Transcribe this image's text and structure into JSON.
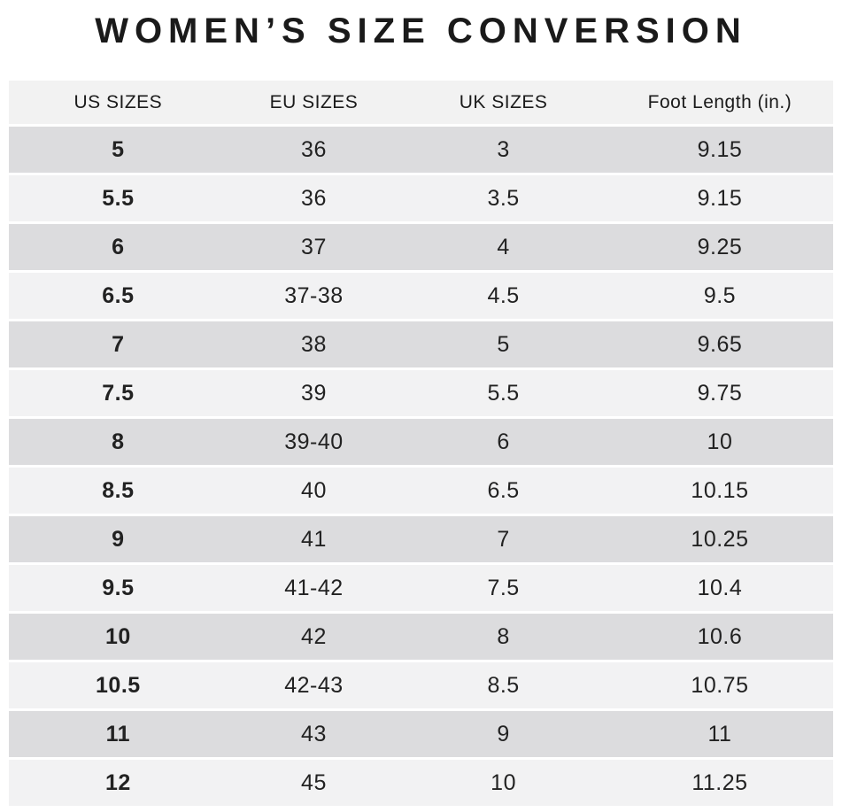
{
  "title": "WOMEN’S SIZE CONVERSION",
  "colors": {
    "row_dark": "#dcdcde",
    "row_light": "#f2f2f3",
    "header_bg": "#f2f2f2",
    "text": "#222222",
    "title_text": "#1a1a1a",
    "page_bg": "#ffffff"
  },
  "table": {
    "columns": [
      "US SIZES",
      "EU SIZES",
      "UK SIZES",
      "Foot Length (in.)"
    ],
    "rows": [
      [
        "5",
        "36",
        "3",
        "9.15"
      ],
      [
        "5.5",
        "36",
        "3.5",
        "9.15"
      ],
      [
        "6",
        "37",
        "4",
        "9.25"
      ],
      [
        "6.5",
        "37-38",
        "4.5",
        "9.5"
      ],
      [
        "7",
        "38",
        "5",
        "9.65"
      ],
      [
        "7.5",
        "39",
        "5.5",
        "9.75"
      ],
      [
        "8",
        "39-40",
        "6",
        "10"
      ],
      [
        "8.5",
        "40",
        "6.5",
        "10.15"
      ],
      [
        "9",
        "41",
        "7",
        "10.25"
      ],
      [
        "9.5",
        "41-42",
        "7.5",
        "10.4"
      ],
      [
        "10",
        "42",
        "8",
        "10.6"
      ],
      [
        "10.5",
        "42-43",
        "8.5",
        "10.75"
      ],
      [
        "11",
        "43",
        "9",
        "11"
      ],
      [
        "12",
        "45",
        "10",
        "11.25"
      ]
    ]
  },
  "chart_data": {
    "type": "table",
    "title": "WOMEN’S SIZE CONVERSION",
    "columns": [
      "US SIZES",
      "EU SIZES",
      "UK SIZES",
      "Foot Length (in.)"
    ],
    "rows": [
      [
        "5",
        "36",
        "3",
        "9.15"
      ],
      [
        "5.5",
        "36",
        "3.5",
        "9.15"
      ],
      [
        "6",
        "37",
        "4",
        "9.25"
      ],
      [
        "6.5",
        "37-38",
        "4.5",
        "9.5"
      ],
      [
        "7",
        "38",
        "5",
        "9.65"
      ],
      [
        "7.5",
        "39",
        "5.5",
        "9.75"
      ],
      [
        "8",
        "39-40",
        "6",
        "10"
      ],
      [
        "8.5",
        "40",
        "6.5",
        "10.15"
      ],
      [
        "9",
        "41",
        "7",
        "10.25"
      ],
      [
        "9.5",
        "41-42",
        "7.5",
        "10.4"
      ],
      [
        "10",
        "42",
        "8",
        "10.6"
      ],
      [
        "10.5",
        "42-43",
        "8.5",
        "10.75"
      ],
      [
        "11",
        "43",
        "9",
        "11"
      ],
      [
        "12",
        "45",
        "10",
        "11.25"
      ]
    ]
  }
}
